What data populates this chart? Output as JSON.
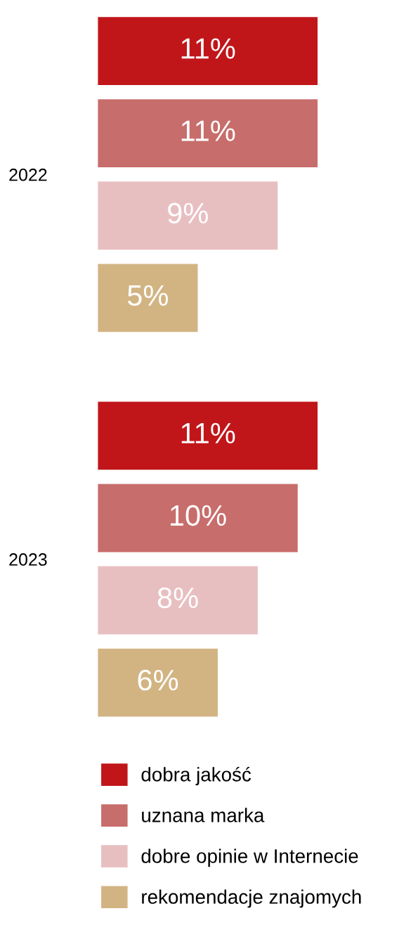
{
  "chart_data": {
    "type": "bar",
    "orientation": "horizontal",
    "categories": [
      "2022",
      "2023"
    ],
    "series": [
      {
        "name": "dobra jakość",
        "color": "#c0161a",
        "values": [
          11,
          11
        ],
        "value_labels": [
          "11%",
          "11%"
        ]
      },
      {
        "name": "uznana marka",
        "color": "#c76d6b",
        "values": [
          11,
          10
        ],
        "value_labels": [
          "11%",
          "10%"
        ]
      },
      {
        "name": "dobre opinie w Internecie",
        "color": "#e8bfc1",
        "values": [
          9,
          8
        ],
        "value_labels": [
          "9%",
          "8%"
        ]
      },
      {
        "name": "rekomendacje znajomych",
        "color": "#d2b483",
        "values": [
          5,
          6
        ],
        "value_labels": [
          "5%",
          "6%"
        ]
      }
    ],
    "tick_labels": "y",
    "grid": false,
    "legend": "bottom"
  }
}
